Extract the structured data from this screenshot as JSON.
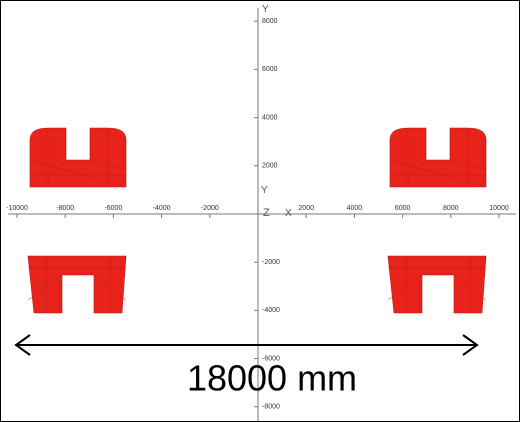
{
  "view": {
    "x_tick_labels": [
      "-10000",
      "-8000",
      "-6000",
      "-4000",
      "-2000",
      "2000",
      "4000",
      "6000",
      "8000",
      "10000"
    ],
    "y_tick_labels": [
      "8000",
      "6000",
      "4000",
      "2000",
      "-2000",
      "-4000",
      "-6000",
      "-8000"
    ],
    "axis_names": {
      "y_top": "Y",
      "y_origin": "Y",
      "z": "Z",
      "x": "X"
    },
    "annotation": "18000 mm"
  }
}
